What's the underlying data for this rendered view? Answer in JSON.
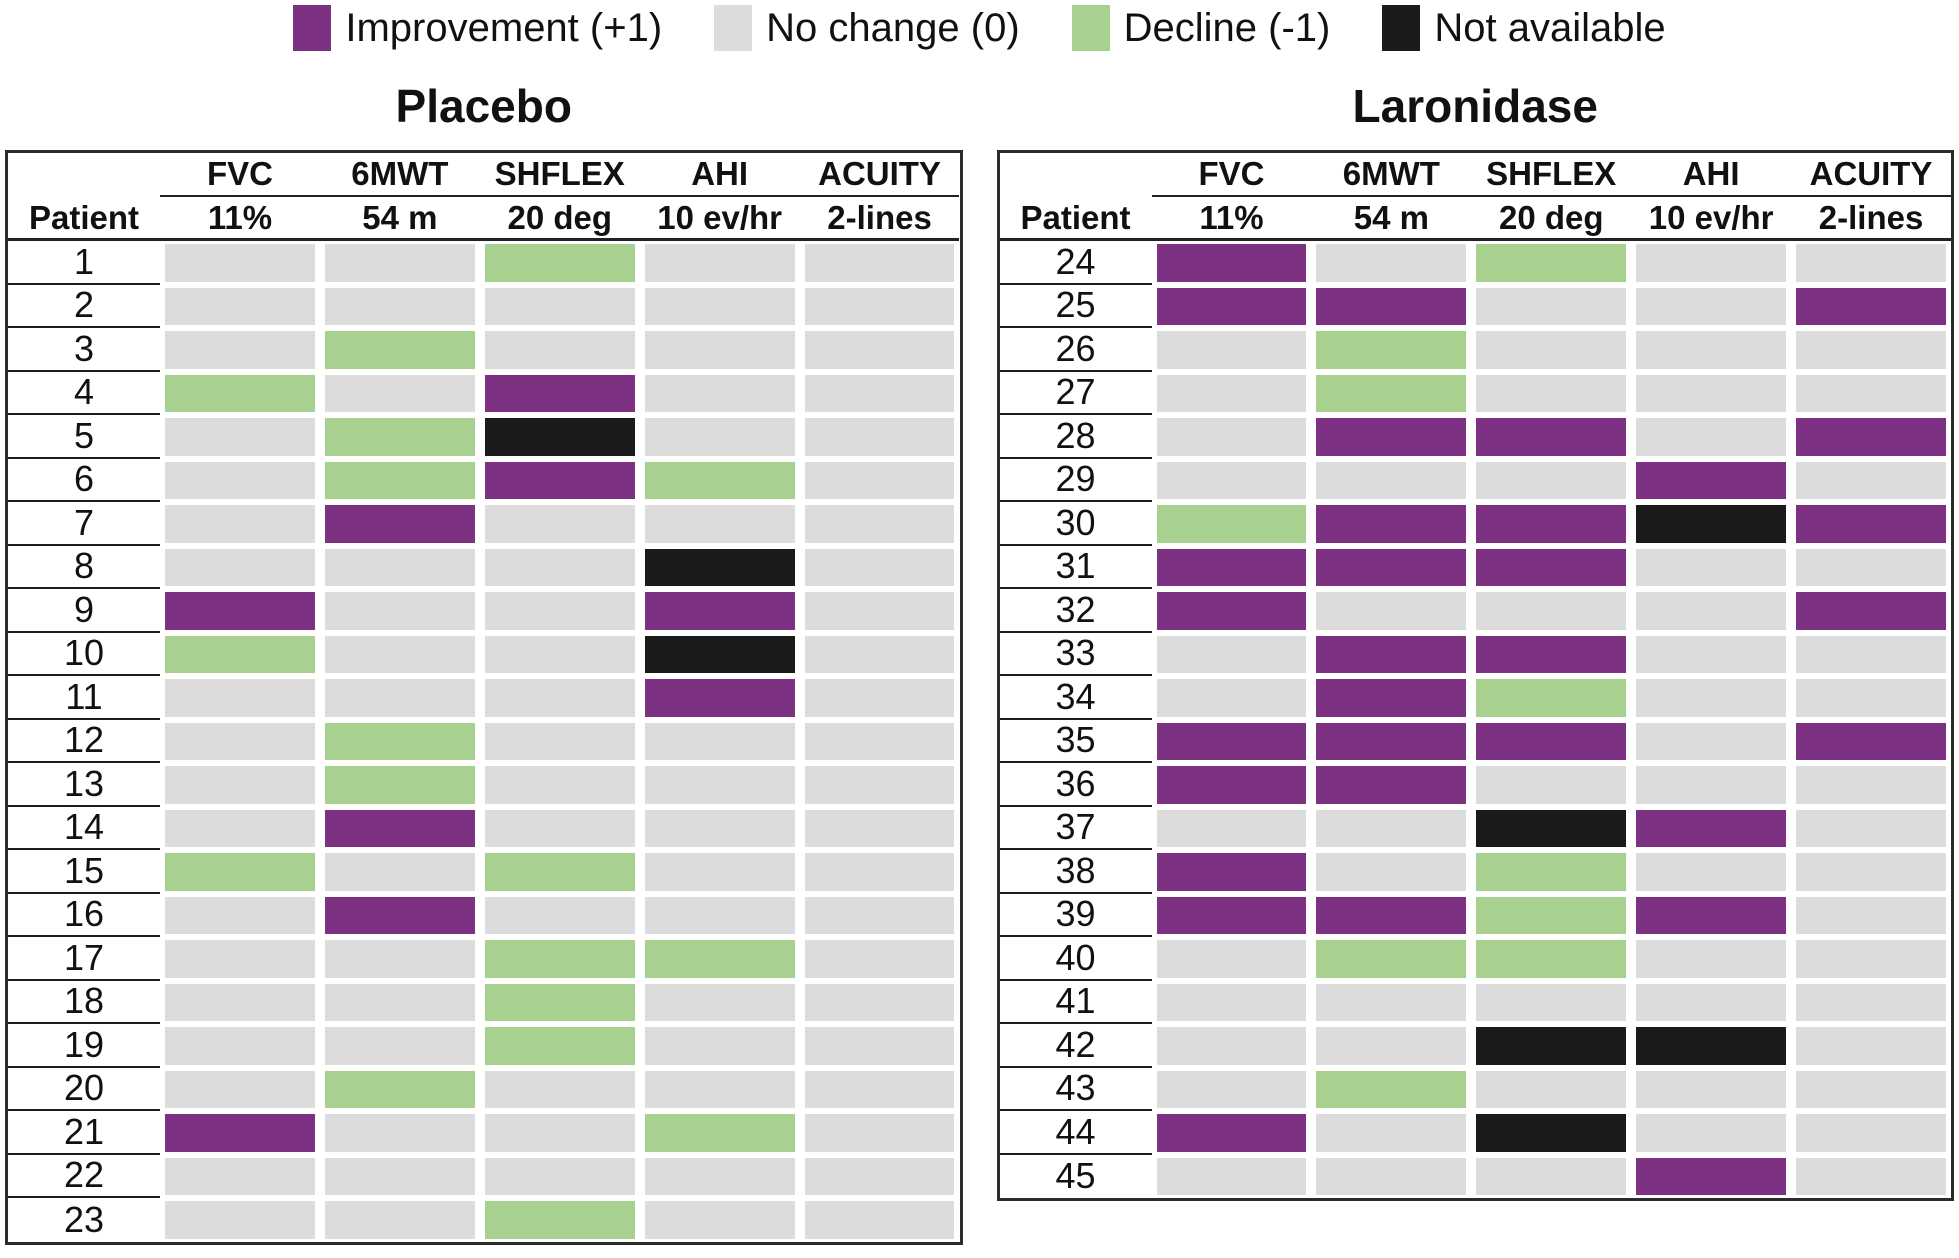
{
  "chart_data": {
    "type": "heatmap",
    "legend": [
      {
        "label": "Improvement (+1)",
        "value": "+1",
        "color": "#7c3183"
      },
      {
        "label": "No change (0)",
        "value": "0",
        "color": "#dcdcdc"
      },
      {
        "label": "Decline (-1)",
        "value": "-1",
        "color": "#a8d08f"
      },
      {
        "label": "Not available",
        "value": "na",
        "color": "#1a1a1a"
      }
    ],
    "row_header": "Patient",
    "columns": [
      {
        "name": "FVC",
        "threshold": "11%"
      },
      {
        "name": "6MWT",
        "threshold": "54 m"
      },
      {
        "name": "SHFLEX",
        "threshold": "20 deg"
      },
      {
        "name": "AHI",
        "threshold": "10 ev/hr"
      },
      {
        "name": "ACUITY",
        "threshold": "2-lines"
      }
    ],
    "panels": [
      {
        "title": "Placebo",
        "patients": [
          {
            "id": "1",
            "values": [
              "0",
              "0",
              "-1",
              "0",
              "0"
            ]
          },
          {
            "id": "2",
            "values": [
              "0",
              "0",
              "0",
              "0",
              "0"
            ]
          },
          {
            "id": "3",
            "values": [
              "0",
              "-1",
              "0",
              "0",
              "0"
            ]
          },
          {
            "id": "4",
            "values": [
              "-1",
              "0",
              "+1",
              "0",
              "0"
            ]
          },
          {
            "id": "5",
            "values": [
              "0",
              "-1",
              "na",
              "0",
              "0"
            ]
          },
          {
            "id": "6",
            "values": [
              "0",
              "-1",
              "+1",
              "-1",
              "0"
            ]
          },
          {
            "id": "7",
            "values": [
              "0",
              "+1",
              "0",
              "0",
              "0"
            ]
          },
          {
            "id": "8",
            "values": [
              "0",
              "0",
              "0",
              "na",
              "0"
            ]
          },
          {
            "id": "9",
            "values": [
              "+1",
              "0",
              "0",
              "+1",
              "0"
            ]
          },
          {
            "id": "10",
            "values": [
              "-1",
              "0",
              "0",
              "na",
              "0"
            ]
          },
          {
            "id": "11",
            "values": [
              "0",
              "0",
              "0",
              "+1",
              "0"
            ]
          },
          {
            "id": "12",
            "values": [
              "0",
              "-1",
              "0",
              "0",
              "0"
            ]
          },
          {
            "id": "13",
            "values": [
              "0",
              "-1",
              "0",
              "0",
              "0"
            ]
          },
          {
            "id": "14",
            "values": [
              "0",
              "+1",
              "0",
              "0",
              "0"
            ]
          },
          {
            "id": "15",
            "values": [
              "-1",
              "0",
              "-1",
              "0",
              "0"
            ]
          },
          {
            "id": "16",
            "values": [
              "0",
              "+1",
              "0",
              "0",
              "0"
            ]
          },
          {
            "id": "17",
            "values": [
              "0",
              "0",
              "-1",
              "-1",
              "0"
            ]
          },
          {
            "id": "18",
            "values": [
              "0",
              "0",
              "-1",
              "0",
              "0"
            ]
          },
          {
            "id": "19",
            "values": [
              "0",
              "0",
              "-1",
              "0",
              "0"
            ]
          },
          {
            "id": "20",
            "values": [
              "0",
              "-1",
              "0",
              "0",
              "0"
            ]
          },
          {
            "id": "21",
            "values": [
              "+1",
              "0",
              "0",
              "-1",
              "0"
            ]
          },
          {
            "id": "22",
            "values": [
              "0",
              "0",
              "0",
              "0",
              "0"
            ]
          },
          {
            "id": "23",
            "values": [
              "0",
              "0",
              "-1",
              "0",
              "0"
            ]
          }
        ]
      },
      {
        "title": "Laronidase",
        "patients": [
          {
            "id": "24",
            "values": [
              "+1",
              "0",
              "-1",
              "0",
              "0"
            ]
          },
          {
            "id": "25",
            "values": [
              "+1",
              "+1",
              "0",
              "0",
              "+1"
            ]
          },
          {
            "id": "26",
            "values": [
              "0",
              "-1",
              "0",
              "0",
              "0"
            ]
          },
          {
            "id": "27",
            "values": [
              "0",
              "-1",
              "0",
              "0",
              "0"
            ]
          },
          {
            "id": "28",
            "values": [
              "0",
              "+1",
              "+1",
              "0",
              "+1"
            ]
          },
          {
            "id": "29",
            "values": [
              "0",
              "0",
              "0",
              "+1",
              "0"
            ]
          },
          {
            "id": "30",
            "values": [
              "-1",
              "+1",
              "+1",
              "na",
              "+1"
            ]
          },
          {
            "id": "31",
            "values": [
              "+1",
              "+1",
              "+1",
              "0",
              "0"
            ]
          },
          {
            "id": "32",
            "values": [
              "+1",
              "0",
              "0",
              "0",
              "+1"
            ]
          },
          {
            "id": "33",
            "values": [
              "0",
              "+1",
              "+1",
              "0",
              "0"
            ]
          },
          {
            "id": "34",
            "values": [
              "0",
              "+1",
              "-1",
              "0",
              "0"
            ]
          },
          {
            "id": "35",
            "values": [
              "+1",
              "+1",
              "+1",
              "0",
              "+1"
            ]
          },
          {
            "id": "36",
            "values": [
              "+1",
              "+1",
              "0",
              "0",
              "0"
            ]
          },
          {
            "id": "37",
            "values": [
              "0",
              "0",
              "na",
              "+1",
              "0"
            ]
          },
          {
            "id": "38",
            "values": [
              "+1",
              "0",
              "-1",
              "0",
              "0"
            ]
          },
          {
            "id": "39",
            "values": [
              "+1",
              "+1",
              "-1",
              "+1",
              "0"
            ]
          },
          {
            "id": "40",
            "values": [
              "0",
              "-1",
              "-1",
              "0",
              "0"
            ]
          },
          {
            "id": "41",
            "values": [
              "0",
              "0",
              "0",
              "0",
              "0"
            ]
          },
          {
            "id": "42",
            "values": [
              "0",
              "0",
              "na",
              "na",
              "0"
            ]
          },
          {
            "id": "43",
            "values": [
              "0",
              "-1",
              "0",
              "0",
              "0"
            ]
          },
          {
            "id": "44",
            "values": [
              "+1",
              "0",
              "na",
              "0",
              "0"
            ]
          },
          {
            "id": "45",
            "values": [
              "0",
              "0",
              "0",
              "+1",
              "0"
            ]
          }
        ]
      }
    ]
  }
}
